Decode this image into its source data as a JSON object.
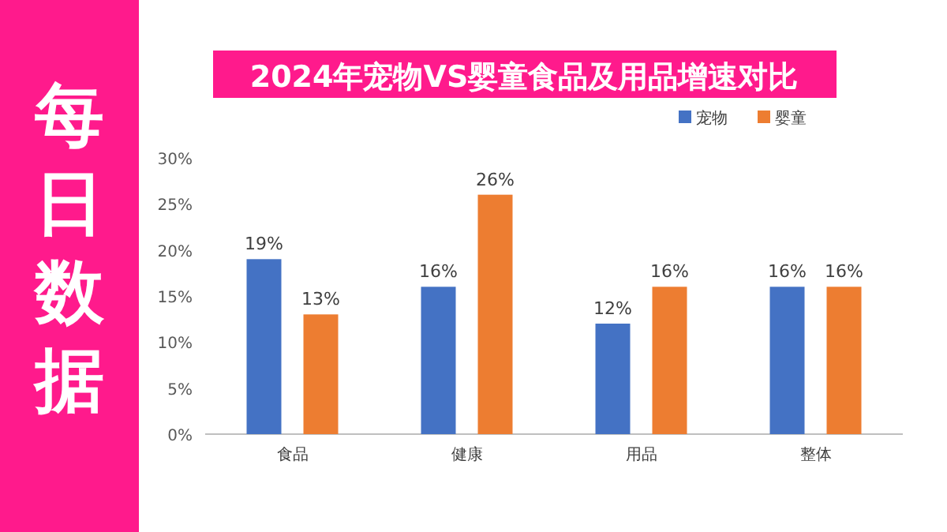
{
  "chart_data": {
    "type": "bar",
    "title": "2024年宠物VS婴童食品及用品增速对比",
    "annotations": [
      "每日数据"
    ],
    "categories": [
      "食品",
      "健康",
      "用品",
      "整体"
    ],
    "series": [
      {
        "name": "宠物",
        "color": "#4472c4",
        "values": [
          19,
          16,
          12,
          16
        ],
        "value_labels": [
          "19%",
          "16%",
          "12%",
          "16%"
        ]
      },
      {
        "name": "婴童",
        "color": "#ed7d31",
        "values": [
          13,
          26,
          16,
          16
        ],
        "value_labels": [
          "13%",
          "26%",
          "16%",
          "16%"
        ]
      }
    ],
    "ylim": [
      0,
      30
    ],
    "yticks": [
      {
        "value": 0,
        "label": "0%"
      },
      {
        "value": 5,
        "label": "5%"
      },
      {
        "value": 10,
        "label": "10%"
      },
      {
        "value": 15,
        "label": "15%"
      },
      {
        "value": 20,
        "label": "20%"
      },
      {
        "value": 25,
        "label": "25%"
      },
      {
        "value": 30,
        "label": "30%"
      }
    ],
    "grid": false,
    "legend": "top right"
  }
}
